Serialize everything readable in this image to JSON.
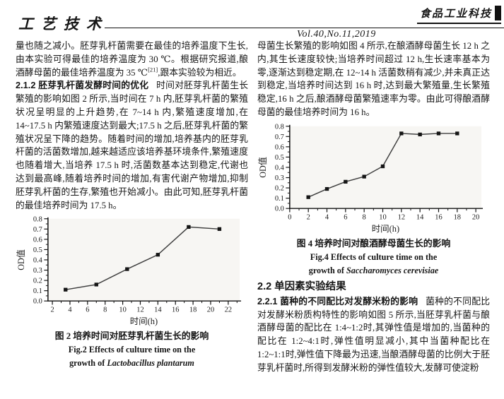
{
  "header": {
    "left_logo": "工艺技术",
    "right_logo": "食品工业科技",
    "volume": "Vol.40,No.11,2019"
  },
  "left_column": {
    "para1": {
      "before_sup": "量也随之减小。胚芽乳杆菌需要在最佳的培养温度下生长,由本实验可得最佳的培养温度为 30 ℃。根据研究报道,酿酒酵母菌的最佳培养温度为 35 ℃",
      "sup": "[21]",
      "after_sup": ",跟本实验较为相近。"
    },
    "section_212": {
      "heading": "2.1.2 胚芽乳杆菌发酵时间的优化",
      "body": "时间对胚芽乳杆菌生长繁殖的影响如图 2 所示,当时间在 7 h 内,胚芽乳杆菌的繁殖状况呈明显的上升趋势,在 7~14 h 内,繁殖速度增加,在 14~17.5 h 内繁殖速度达到最大;17.5 h 之后,胚芽乳杆菌的繁殖状况呈下降的趋势。随着时间的增加,培养基内的胚芽乳杆菌的活菌数增加,越来越适应该培养基环境条件,繁殖速度也随着增大,当培养 17.5 h 时,活菌数基本达到稳定,代谢也达到最高峰,随着培养时间的增加,有害代谢产物增加,抑制胚芽乳杆菌的生存,繁殖也开始减小。由此可知,胚芽乳杆菌的最佳培养时间为 17.5 h。"
    },
    "fig2": {
      "caption_zh": "图 2  培养时间对胚芽乳杆菌生长的影响",
      "caption_en_line1": "Fig.2  Effects of culture time on the",
      "caption_en_prefix": "growth of ",
      "caption_en_species": "Lactobacillus plantarum"
    }
  },
  "right_column": {
    "para1": "母菌生长繁殖的影响如图 4 所示,在酿酒酵母菌生长 12 h 之内,其生长速度较快;当培养时间超过 12 h,生长速率基本为零,逐渐达到稳定期,在 12~14 h 活菌数稍有减少,并未真正达到稳定,当培养时间达到 16 h 时,达到最大繁殖量,生长繁殖稳定,16 h 之后,酿酒酵母菌繁殖速率为零。由此可得酿酒酵母菌的最佳培养时间为 16 h。",
    "fig4": {
      "caption_zh": "图 4  培养时间对酿酒酵母菌生长的影响",
      "caption_en_line1": "Fig.4  Effects of culture time on the",
      "caption_en_prefix": "growth of ",
      "caption_en_species": "Saccharomyces cerevisiae"
    },
    "section_22_heading": "2.2  单因素实验结果",
    "section_221": {
      "heading": "2.2.1 菌种的不同配比对发酵米粉的影响",
      "body": "菌种的不同配比对发酵米粉质构特性的影响如图 5 所示,当胚芽乳杆菌与酿酒酵母菌的配比在 1:4~1:2时,其弹性值是增加的,当菌种的配比在 1:2~4:1时,弹性值明显减小,其中当菌种配比在 1:2~1:1时,弹性值下降最为迅速,当酿酒酵母菌的比例大于胚芽乳杆菌时,所得到发酵米粉的弹性值较大,发酵可使淀粉"
    }
  },
  "colors": {
    "axis": "#111111",
    "line": "#3f3f3f",
    "marker": "#151515",
    "plot_bg": "#f7f6f3",
    "tick_text": "#1c1c1c"
  },
  "chart_data": [
    {
      "id": "fig2",
      "type": "line",
      "title": "培养时间对胚芽乳杆菌生长的影响",
      "xlabel": "时间(h)",
      "ylabel": "OD值",
      "x": [
        3.5,
        7,
        10.5,
        14,
        17.5,
        21
      ],
      "y": [
        0.11,
        0.16,
        0.31,
        0.45,
        0.72,
        0.7
      ],
      "xlim": [
        1.5,
        23.3
      ],
      "ylim": [
        0,
        0.8
      ],
      "xticks": [
        2,
        4,
        6,
        8,
        10,
        12,
        14,
        16,
        18,
        20,
        22
      ],
      "yticks": [
        0.0,
        0.1,
        0.2,
        0.3,
        0.4,
        0.5,
        0.6,
        0.7,
        0.8
      ],
      "x_minor_step": 1,
      "y_minor_step": 0.05,
      "marker": "square",
      "grid": false,
      "legend": "none"
    },
    {
      "id": "fig4",
      "type": "line",
      "title": "培养时间对酿酒酵母菌生长的影响",
      "xlabel": "时间(h)",
      "ylabel": "OD值",
      "x": [
        2,
        4,
        6,
        8,
        10,
        12,
        14,
        16,
        18
      ],
      "y": [
        0.11,
        0.19,
        0.26,
        0.31,
        0.41,
        0.73,
        0.72,
        0.73,
        0.73
      ],
      "xlim": [
        0,
        20.6
      ],
      "ylim": [
        0,
        0.8
      ],
      "xticks": [
        0,
        2,
        4,
        6,
        8,
        10,
        12,
        14,
        16,
        18,
        20
      ],
      "yticks": [
        0.0,
        0.1,
        0.2,
        0.3,
        0.4,
        0.5,
        0.6,
        0.7,
        0.8
      ],
      "x_minor_step": 1,
      "y_minor_step": 0.05,
      "marker": "square",
      "grid": false,
      "legend": "none"
    }
  ]
}
